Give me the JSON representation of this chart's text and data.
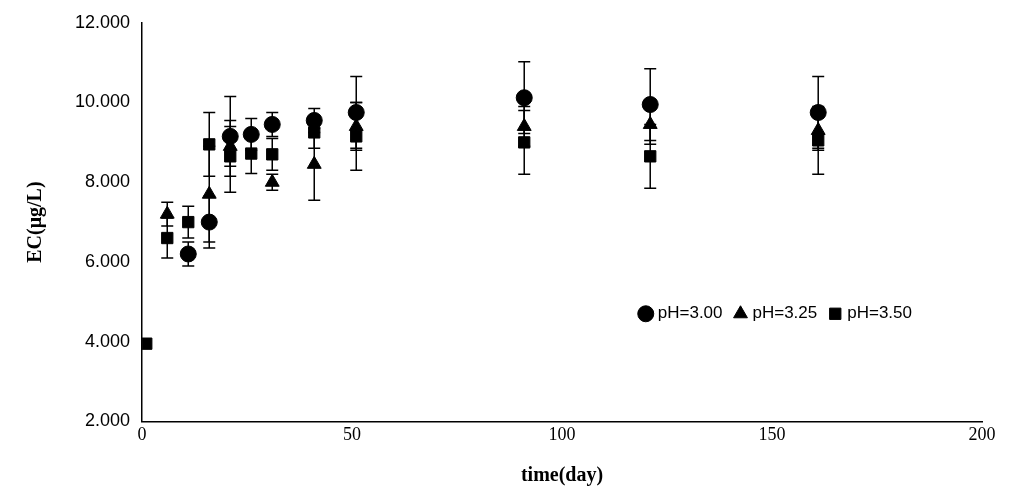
{
  "chart_data": {
    "type": "scatter",
    "xlabel": "time(day)",
    "ylabel": "EC(μg/L)",
    "xlim": [
      0,
      200
    ],
    "xticks": [
      0,
      50,
      100,
      150,
      200
    ],
    "ylim": [
      2,
      12
    ],
    "yticks": [
      {
        "value": 2,
        "label": "2.000"
      },
      {
        "value": 4,
        "label": "4.000"
      },
      {
        "value": 6,
        "label": "6.000"
      },
      {
        "value": 8,
        "label": "8.000"
      },
      {
        "value": 10,
        "label": "10.000"
      },
      {
        "value": 12,
        "label": "12.000"
      }
    ],
    "x": [
      1,
      6,
      11,
      16,
      21,
      26,
      31,
      41,
      51,
      91,
      121,
      161
    ],
    "grid": false,
    "legend": "right",
    "series": [
      {
        "name": "pH=3.00",
        "color": "#000000",
        "marker": "circle",
        "values": [
          null,
          null,
          6.2,
          7.0,
          9.15,
          9.2,
          9.45,
          9.55,
          9.75,
          10.12,
          9.95,
          9.75
        ],
        "errors": [
          null,
          null,
          0.3,
          0.65,
          1.0,
          0.4,
          0.3,
          0.3,
          0.9,
          0.9,
          0.9,
          0.9
        ]
      },
      {
        "name": "pH=3.25",
        "color": "#000000",
        "marker": "triangle",
        "values": [
          null,
          7.2,
          null,
          7.7,
          8.9,
          null,
          8.0,
          8.45,
          9.4,
          9.4,
          9.45,
          9.3
        ],
        "errors": [
          null,
          0.3,
          null,
          1.2,
          0.5,
          null,
          0.2,
          0.9,
          0.6,
          0.5,
          0.5,
          0.5
        ]
      },
      {
        "name": "pH=3.50",
        "color": "#000000",
        "marker": "square",
        "values": [
          3.95,
          6.6,
          7.0,
          8.95,
          8.65,
          8.72,
          8.7,
          9.25,
          9.15,
          9.0,
          8.65,
          9.05
        ],
        "errors": [
          null,
          0.5,
          0.4,
          0.8,
          0.9,
          0.5,
          0.4,
          0.4,
          0.85,
          0.8,
          0.8,
          0.85
        ]
      }
    ]
  }
}
